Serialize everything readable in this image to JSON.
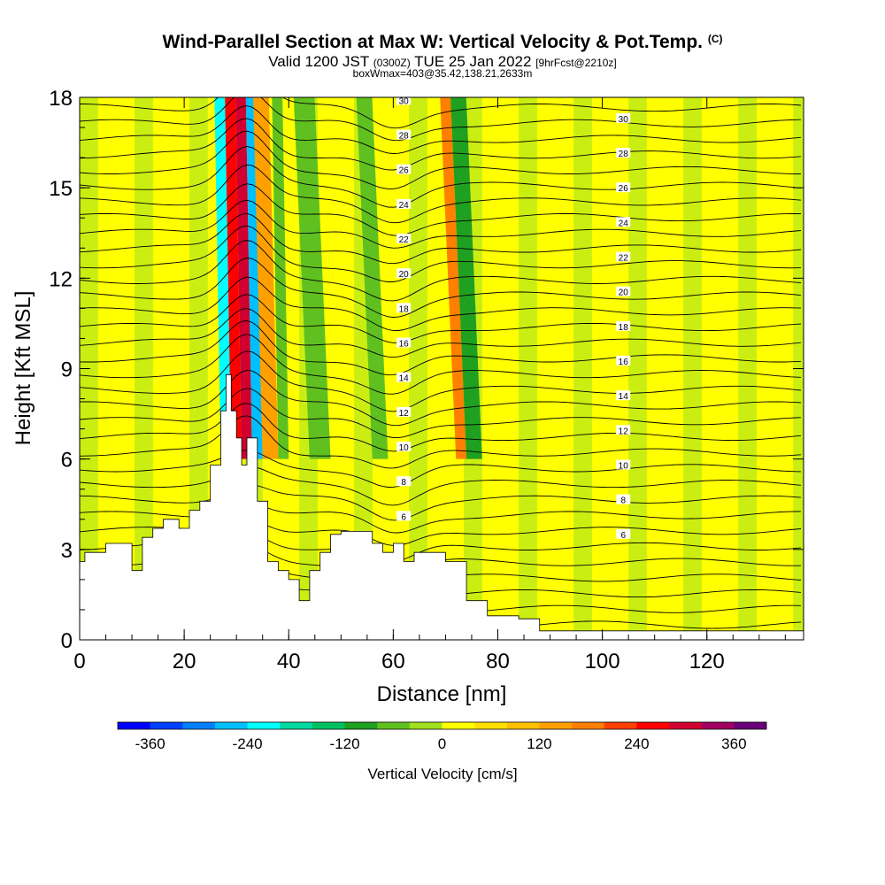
{
  "title": {
    "main": "Wind-Parallel Section at Max W: Vertical Velocity & Pot.Temp.",
    "mark": "(C)",
    "valid_prefix": "Valid 1200 JST",
    "valid_utc": "(0300Z)",
    "valid_date": "TUE 25 Jan 2022",
    "forecast": "[9hrFcst@2210z]",
    "box_info": "boxWmax=403@35.42,138.21,2633m"
  },
  "chart_data": {
    "type": "heatmap",
    "xlabel": "Distance [nm]",
    "ylabel": "Height [Kft MSL]",
    "xlim": [
      0,
      138.5
    ],
    "ylim": [
      0,
      18
    ],
    "x_ticks": [
      0,
      20,
      40,
      60,
      80,
      100,
      120
    ],
    "y_ticks": [
      0,
      3,
      6,
      9,
      12,
      15,
      18
    ],
    "colorbar": {
      "label": "Vertical Velocity [cm/s]",
      "ticks": [
        -360,
        -240,
        -120,
        0,
        120,
        240,
        360
      ],
      "range": [
        -400,
        400
      ],
      "colors": [
        "#0000ff",
        "#0040ff",
        "#0080ff",
        "#00bfff",
        "#00ffff",
        "#00d9a0",
        "#00c060",
        "#20a020",
        "#60c020",
        "#a0e020",
        "#ffff00",
        "#ffe000",
        "#ffc000",
        "#ffa000",
        "#ff8000",
        "#ff4000",
        "#ff0000",
        "#d00030",
        "#a00060",
        "#6a007a"
      ]
    },
    "max_w_cm_s": 403,
    "vertical_velocity_bands": [
      {
        "x": [
          27,
          29
        ],
        "w": -240
      },
      {
        "x": [
          29,
          31
        ],
        "w": 250
      },
      {
        "x": [
          31,
          33
        ],
        "w": 300
      },
      {
        "x": [
          33,
          35
        ],
        "w": -260
      },
      {
        "x": [
          35,
          38
        ],
        "w": 150
      },
      {
        "x": [
          38,
          40
        ],
        "w": -80
      },
      {
        "x": [
          44,
          48
        ],
        "w": -70
      },
      {
        "x": [
          56,
          59
        ],
        "w": -80
      },
      {
        "x": [
          72,
          74
        ],
        "w": 180
      },
      {
        "x": [
          74,
          77
        ],
        "w": -90
      }
    ],
    "theta_contour_labels": [
      "6",
      "8",
      "10",
      "12",
      "14",
      "16",
      "18",
      "20",
      "22",
      "24",
      "26",
      "28",
      "30"
    ],
    "terrain_kft": [
      [
        0,
        2.6
      ],
      [
        1,
        2.6
      ],
      [
        1,
        2.9
      ],
      [
        5,
        2.9
      ],
      [
        5,
        3.2
      ],
      [
        10,
        3.2
      ],
      [
        10,
        2.3
      ],
      [
        12,
        2.3
      ],
      [
        12,
        3.4
      ],
      [
        14,
        3.4
      ],
      [
        14,
        3.7
      ],
      [
        16,
        3.7
      ],
      [
        16,
        4.0
      ],
      [
        19,
        4.0
      ],
      [
        19,
        3.7
      ],
      [
        21,
        3.7
      ],
      [
        21,
        4.3
      ],
      [
        23,
        4.3
      ],
      [
        23,
        4.6
      ],
      [
        25,
        4.6
      ],
      [
        25,
        5.8
      ],
      [
        27,
        5.8
      ],
      [
        27,
        7.6
      ],
      [
        28,
        7.6
      ],
      [
        28,
        8.8
      ],
      [
        29,
        8.8
      ],
      [
        29,
        7.6
      ],
      [
        30,
        7.6
      ],
      [
        30,
        6.7
      ],
      [
        31,
        6.7
      ],
      [
        31,
        5.8
      ],
      [
        32,
        5.8
      ],
      [
        32,
        6.7
      ],
      [
        34,
        6.7
      ],
      [
        34,
        4.6
      ],
      [
        36,
        4.6
      ],
      [
        36,
        2.6
      ],
      [
        38,
        2.6
      ],
      [
        38,
        2.3
      ],
      [
        40,
        2.3
      ],
      [
        40,
        2.0
      ],
      [
        42,
        2.0
      ],
      [
        42,
        1.3
      ],
      [
        44,
        1.3
      ],
      [
        44,
        2.3
      ],
      [
        46,
        2.3
      ],
      [
        46,
        2.9
      ],
      [
        48,
        2.9
      ],
      [
        48,
        3.5
      ],
      [
        50,
        3.5
      ],
      [
        50,
        3.6
      ],
      [
        56,
        3.6
      ],
      [
        56,
        3.2
      ],
      [
        58,
        3.2
      ],
      [
        58,
        2.9
      ],
      [
        60,
        2.9
      ],
      [
        60,
        3.2
      ],
      [
        62,
        3.2
      ],
      [
        62,
        2.6
      ],
      [
        64,
        2.6
      ],
      [
        64,
        2.9
      ],
      [
        66,
        2.9
      ],
      [
        66,
        2.9
      ],
      [
        70,
        2.9
      ],
      [
        70,
        2.6
      ],
      [
        74,
        2.6
      ],
      [
        74,
        1.3
      ],
      [
        78,
        1.3
      ],
      [
        78,
        0.8
      ],
      [
        84,
        0.8
      ],
      [
        84,
        0.7
      ],
      [
        88,
        0.7
      ],
      [
        88,
        0.3
      ],
      [
        95,
        0.3
      ],
      [
        95,
        0.3
      ],
      [
        138.5,
        0.3
      ]
    ]
  }
}
